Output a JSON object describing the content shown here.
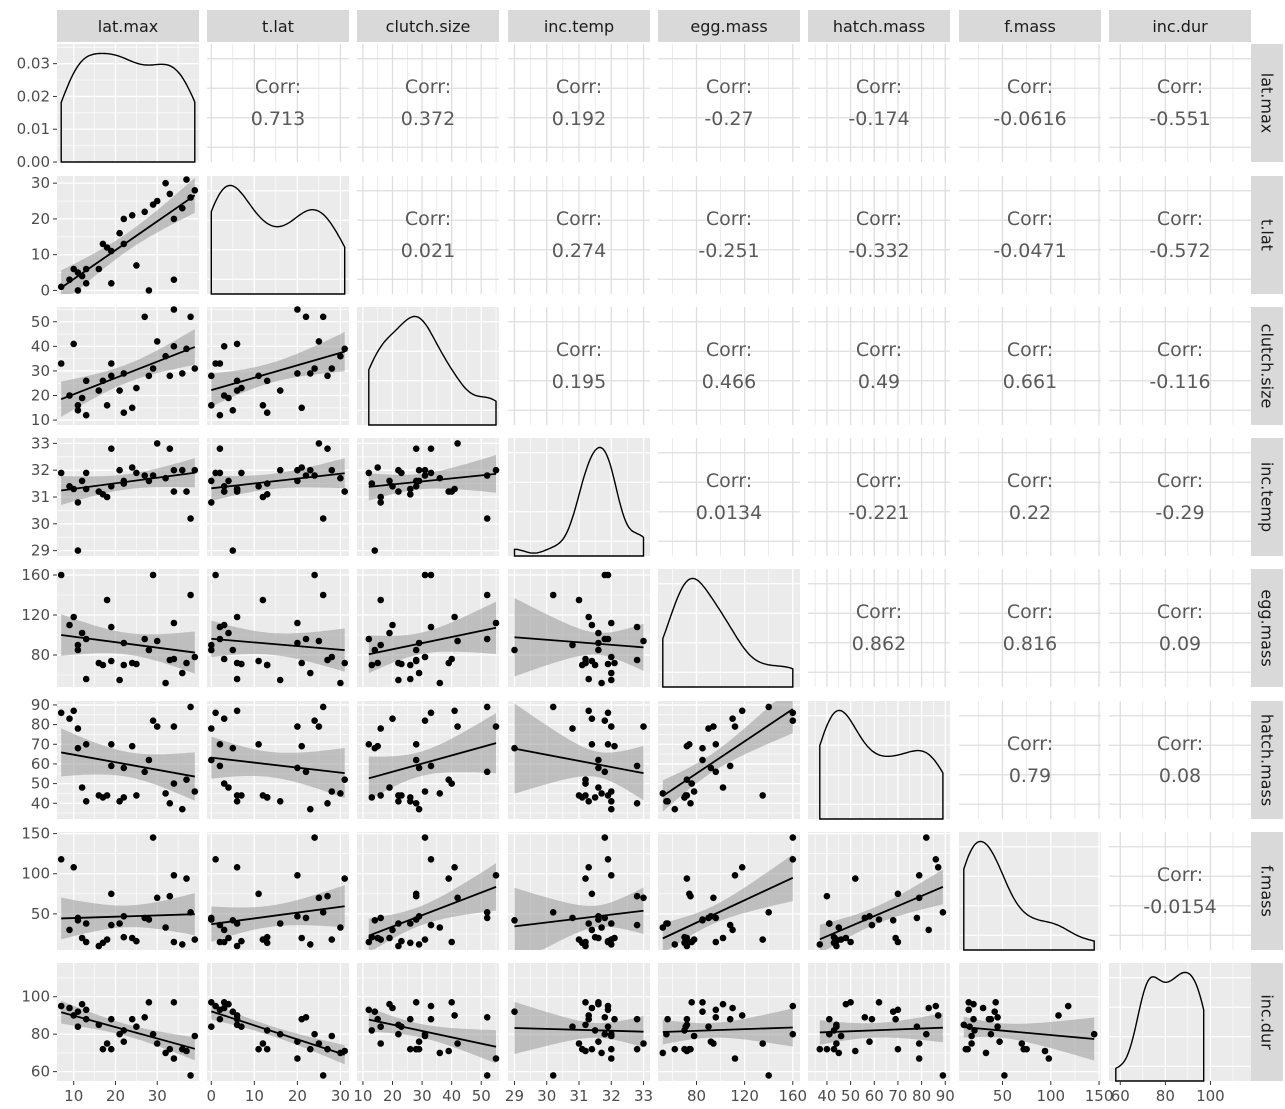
{
  "chart_data": {
    "type": "scatter-matrix",
    "variables": [
      "lat.max",
      "t.lat",
      "clutch.size",
      "inc.temp",
      "egg.mass",
      "hatch.mass",
      "f.mass",
      "inc.dur"
    ],
    "corr_label": "Corr:",
    "correlations": {
      "t.lat|lat.max": "0.713",
      "clutch.size|lat.max": "0.372",
      "inc.temp|lat.max": "0.192",
      "egg.mass|lat.max": "-0.27",
      "hatch.mass|lat.max": "-0.174",
      "f.mass|lat.max": "-0.0616",
      "inc.dur|lat.max": "-0.551",
      "clutch.size|t.lat": "0.021",
      "inc.temp|t.lat": "0.274",
      "egg.mass|t.lat": "-0.251",
      "hatch.mass|t.lat": "-0.332",
      "f.mass|t.lat": "-0.0471",
      "inc.dur|t.lat": "-0.572",
      "inc.temp|clutch.size": "0.195",
      "egg.mass|clutch.size": "0.466",
      "hatch.mass|clutch.size": "0.49",
      "f.mass|clutch.size": "0.661",
      "inc.dur|clutch.size": "-0.116",
      "egg.mass|inc.temp": "0.0134",
      "hatch.mass|inc.temp": "-0.221",
      "f.mass|inc.temp": "0.22",
      "inc.dur|inc.temp": "-0.29",
      "hatch.mass|egg.mass": "0.862",
      "f.mass|egg.mass": "0.816",
      "inc.dur|egg.mass": "0.09",
      "f.mass|hatch.mass": "0.79",
      "inc.dur|hatch.mass": "0.08",
      "inc.dur|f.mass": "-0.0154"
    },
    "axes": [
      {
        "variable": "lat.max",
        "range": [
          6,
          40
        ],
        "ticks": [
          10,
          20,
          30
        ],
        "tick_labels": [
          "10",
          "20",
          "30"
        ]
      },
      {
        "variable": "t.lat",
        "range": [
          -1,
          32
        ],
        "ticks": [
          0,
          10,
          20,
          30
        ],
        "tick_labels": [
          "0",
          "10",
          "20",
          "30"
        ]
      },
      {
        "variable": "clutch.size",
        "range": [
          8,
          56
        ],
        "ticks": [
          10,
          20,
          30,
          40,
          50
        ],
        "tick_labels": [
          "10",
          "20",
          "30",
          "40",
          "50"
        ]
      },
      {
        "variable": "inc.temp",
        "range": [
          28.8,
          33.2
        ],
        "ticks": [
          29,
          30,
          31,
          32,
          33
        ],
        "tick_labels": [
          "29",
          "30",
          "31",
          "32",
          "33"
        ]
      },
      {
        "variable": "egg.mass",
        "range": [
          48,
          166
        ],
        "ticks": [
          80,
          120,
          160
        ],
        "tick_labels": [
          "80",
          "120",
          "160"
        ]
      },
      {
        "variable": "hatch.mass",
        "range": [
          32,
          92
        ],
        "ticks": [
          40,
          50,
          60,
          70,
          80,
          90
        ],
        "tick_labels": [
          "40",
          "50",
          "60",
          "70",
          "80",
          "90"
        ]
      },
      {
        "variable": "f.mass",
        "range": [
          5,
          152
        ],
        "ticks": [
          50,
          100,
          150
        ],
        "tick_labels": [
          "50",
          "100",
          "150"
        ]
      },
      {
        "variable": "inc.dur",
        "range": [
          55,
          118
        ],
        "ticks": [
          60,
          80,
          100
        ],
        "tick_labels": [
          "60",
          "80",
          "100"
        ]
      }
    ],
    "density_y_axis": {
      "range": [
        0,
        0.036
      ],
      "ticks": [
        0,
        0.01,
        0.02,
        0.03
      ],
      "tick_labels": [
        "0.00",
        "0.01",
        "0.02",
        "0.03"
      ]
    },
    "y_axes": [
      {
        "variable": "t.lat",
        "ticks": [
          0,
          10,
          20,
          30
        ],
        "tick_labels": [
          "0",
          "10",
          "20",
          "30"
        ]
      },
      {
        "variable": "clutch.size",
        "ticks": [
          10,
          20,
          30,
          40,
          50
        ],
        "tick_labels": [
          "10",
          "20",
          "30",
          "40",
          "50"
        ]
      },
      {
        "variable": "inc.temp",
        "ticks": [
          29,
          30,
          31,
          32,
          33
        ],
        "tick_labels": [
          "29",
          "30",
          "31",
          "32",
          "33"
        ]
      },
      {
        "variable": "egg.mass",
        "ticks": [
          80,
          120,
          160
        ],
        "tick_labels": [
          "80",
          "120",
          "160"
        ]
      },
      {
        "variable": "hatch.mass",
        "ticks": [
          40,
          50,
          60,
          70,
          80,
          90
        ],
        "tick_labels": [
          "40",
          "50",
          "60",
          "70",
          "80",
          "90"
        ]
      },
      {
        "variable": "f.mass",
        "ticks": [
          50,
          100,
          150
        ],
        "tick_labels": [
          "50",
          "100",
          "150"
        ]
      },
      {
        "variable": "inc.dur",
        "ticks": [
          60,
          80,
          100
        ],
        "tick_labels": [
          "60",
          "80",
          "100"
        ]
      }
    ],
    "observations": [
      {
        "lat.max": 7,
        "t.lat": 1,
        "clutch.size": 33,
        "inc.temp": 31.9,
        "egg.mass": 160,
        "hatch.mass": 86,
        "f.mass": 118,
        "inc.dur": 95
      },
      {
        "lat.max": 9,
        "t.lat": 3,
        "clutch.size": 20,
        "inc.temp": 31.4,
        "egg.mass": 110,
        "hatch.mass": 83,
        "f.mass": 30,
        "inc.dur": 94
      },
      {
        "lat.max": 10,
        "t.lat": 6,
        "clutch.size": 41,
        "inc.temp": 31.3,
        "egg.mass": 118,
        "hatch.mass": 87,
        "f.mass": 108,
        "inc.dur": 90
      },
      {
        "lat.max": 11,
        "t.lat": 0,
        "clutch.size": 16,
        "inc.temp": 30.8,
        "egg.mass": 90,
        "hatch.mass": 78,
        "f.mass": 45,
        "inc.dur": 84
      },
      {
        "lat.max": 11,
        "t.lat": 5,
        "clutch.size": 14,
        "inc.temp": 29.0,
        "egg.mass": 85,
        "hatch.mass": 68,
        "f.mass": 42,
        "inc.dur": 92
      },
      {
        "lat.max": 12,
        "t.lat": 4,
        "clutch.size": 19,
        "inc.temp": 31.6,
        "egg.mass": 102,
        "hatch.mass": 48,
        "f.mass": 20,
        "inc.dur": 96
      },
      {
        "lat.max": 13,
        "t.lat": 6,
        "clutch.size": 26,
        "inc.temp": 31.3,
        "egg.mass": 56,
        "hatch.mass": 41,
        "f.mass": 38,
        "inc.dur": 88
      },
      {
        "lat.max": 13,
        "t.lat": 2,
        "clutch.size": 12,
        "inc.temp": 31.9,
        "egg.mass": 96,
        "hatch.mass": 70,
        "f.mass": 15,
        "inc.dur": 93
      },
      {
        "lat.max": 16,
        "t.lat": 6,
        "clutch.size": 22,
        "inc.temp": 31.2,
        "egg.mass": 72,
        "hatch.mass": 44,
        "f.mass": 10,
        "inc.dur": 85
      },
      {
        "lat.max": 17,
        "t.lat": 13,
        "clutch.size": 26,
        "inc.temp": 31.1,
        "egg.mass": 70,
        "hatch.mass": 43,
        "f.mass": 14,
        "inc.dur": 72
      },
      {
        "lat.max": 18,
        "t.lat": 12,
        "clutch.size": 16,
        "inc.temp": 31.0,
        "egg.mass": 135,
        "hatch.mass": 44,
        "f.mass": 18,
        "inc.dur": 75
      },
      {
        "lat.max": 19,
        "t.lat": 11,
        "clutch.size": 28,
        "inc.temp": 31.4,
        "egg.mass": 74,
        "hatch.mass": 70,
        "f.mass": 75,
        "inc.dur": 72
      },
      {
        "lat.max": 19,
        "t.lat": 2,
        "clutch.size": 33,
        "inc.temp": 32.8,
        "egg.mass": 108,
        "hatch.mass": 59,
        "f.mass": 36,
        "inc.dur": 88
      },
      {
        "lat.max": 21,
        "t.lat": 16,
        "clutch.size": 22,
        "inc.temp": 32.0,
        "egg.mass": 55,
        "hatch.mass": 41,
        "f.mass": 38,
        "inc.dur": 80
      },
      {
        "lat.max": 22,
        "t.lat": 13,
        "clutch.size": 13,
        "inc.temp": 31.5,
        "egg.mass": 70,
        "hatch.mass": 43,
        "f.mass": 21,
        "inc.dur": 82
      },
      {
        "lat.max": 22,
        "t.lat": 20,
        "clutch.size": 29,
        "inc.temp": 31.6,
        "egg.mass": 92,
        "hatch.mass": 58,
        "f.mass": 47,
        "inc.dur": 76
      },
      {
        "lat.max": 24,
        "t.lat": 21,
        "clutch.size": 15,
        "inc.temp": 32.1,
        "egg.mass": 72,
        "hatch.mass": 69,
        "f.mass": 20,
        "inc.dur": 88
      },
      {
        "lat.max": 25,
        "t.lat": 7,
        "clutch.size": 23,
        "inc.temp": 31.9,
        "egg.mass": 71,
        "hatch.mass": 44,
        "f.mass": 16,
        "inc.dur": 84
      },
      {
        "lat.max": 27,
        "t.lat": 22,
        "clutch.size": 52,
        "inc.temp": 31.8,
        "egg.mass": 96,
        "hatch.mass": 56,
        "f.mass": 45,
        "inc.dur": 89
      },
      {
        "lat.max": 28,
        "t.lat": 0,
        "clutch.size": 28,
        "inc.temp": 31.6,
        "egg.mass": 85,
        "hatch.mass": 62,
        "f.mass": 43,
        "inc.dur": 97
      },
      {
        "lat.max": 29,
        "t.lat": 24,
        "clutch.size": 31,
        "inc.temp": 31.8,
        "egg.mass": 160,
        "hatch.mass": 82,
        "f.mass": 145,
        "inc.dur": 80
      },
      {
        "lat.max": 30,
        "t.lat": 25,
        "clutch.size": 42,
        "inc.temp": 33.0,
        "egg.mass": 94,
        "hatch.mass": 79,
        "f.mass": 70,
        "inc.dur": 75
      },
      {
        "lat.max": 32,
        "t.lat": 30,
        "clutch.size": 36,
        "inc.temp": 31.7,
        "egg.mass": 52,
        "hatch.mass": 45,
        "f.mass": 33,
        "inc.dur": 70
      },
      {
        "lat.max": 33,
        "t.lat": 27,
        "clutch.size": 28,
        "inc.temp": 32.8,
        "egg.mass": 75,
        "hatch.mass": 40,
        "f.mass": 72,
        "inc.dur": 72
      },
      {
        "lat.max": 34,
        "t.lat": 20,
        "clutch.size": 55,
        "inc.temp": 32.0,
        "egg.mass": 112,
        "hatch.mass": 79,
        "f.mass": 98,
        "inc.dur": 67
      },
      {
        "lat.max": 34,
        "t.lat": 3,
        "clutch.size": 40,
        "inc.temp": 31.2,
        "egg.mass": 76,
        "hatch.mass": 50,
        "f.mass": 15,
        "inc.dur": 97
      },
      {
        "lat.max": 36,
        "t.lat": 23,
        "clutch.size": 29,
        "inc.temp": 32.0,
        "egg.mass": 62,
        "hatch.mass": 37,
        "f.mass": 12,
        "inc.dur": 72
      },
      {
        "lat.max": 37,
        "t.lat": 31,
        "clutch.size": 39,
        "inc.temp": 31.2,
        "egg.mass": 72,
        "hatch.mass": 52,
        "f.mass": 94,
        "inc.dur": 71
      },
      {
        "lat.max": 38,
        "t.lat": 26,
        "clutch.size": 52,
        "inc.temp": 30.2,
        "egg.mass": 140,
        "hatch.mass": 89,
        "f.mass": 52,
        "inc.dur": 58
      },
      {
        "lat.max": 39,
        "t.lat": 28,
        "clutch.size": 31,
        "inc.temp": 32.0,
        "egg.mass": 78,
        "hatch.mass": 46,
        "f.mass": 18,
        "inc.dur": 79
      }
    ],
    "panel_background": "#ebebeb",
    "grid": true,
    "strip_fill": "#d9d9d9",
    "point_color": "#000000",
    "fit_color": "#000000",
    "band_color": "#999999"
  }
}
